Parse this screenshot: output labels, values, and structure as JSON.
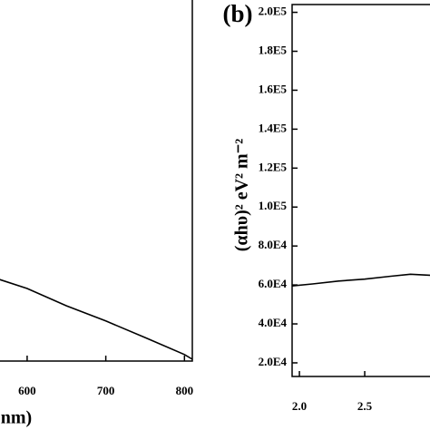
{
  "chart_data": [
    {
      "type": "line",
      "x_label": "nm)",
      "x": [
        565,
        600,
        650,
        700,
        750,
        800,
        810
      ],
      "values": [
        0.226,
        0.201,
        0.153,
        0.111,
        0.065,
        0.018,
        0.005
      ],
      "color": "#000000",
      "xlim": [
        565.5,
        810
      ],
      "xticks": [
        600,
        700,
        800
      ],
      "ylim": [
        0,
        1
      ]
    },
    {
      "type": "line",
      "panel_label": "(b)",
      "y_label": "(αhυ)² eV² m⁻²",
      "x": [
        1.944,
        2.1,
        2.3,
        2.5,
        2.7,
        2.85,
        3.0
      ],
      "values": [
        59500,
        60500,
        62000,
        63000,
        64500,
        65500,
        65000
      ],
      "color": "#000000",
      "xlim": [
        1.944,
        3.0
      ],
      "xticks": [
        {
          "value": 2,
          "label": "2.0"
        },
        {
          "value": 2.5,
          "label": "2.5"
        }
      ],
      "ylim": [
        13000,
        204000
      ],
      "yticks": [
        {
          "value": 20000,
          "label": "2.0E4"
        },
        {
          "value": 40000,
          "label": "4.0E4"
        },
        {
          "value": 60000,
          "label": "6.0E4"
        },
        {
          "value": 80000,
          "label": "8.0E4"
        },
        {
          "value": 100000,
          "label": "1.0E5"
        },
        {
          "value": 120000,
          "label": "1.2E5"
        },
        {
          "value": 140000,
          "label": "1.4E5"
        },
        {
          "value": 160000,
          "label": "1.6E5"
        },
        {
          "value": 180000,
          "label": "1.8E5"
        },
        {
          "value": 200000,
          "label": "2.0E5"
        }
      ]
    }
  ]
}
